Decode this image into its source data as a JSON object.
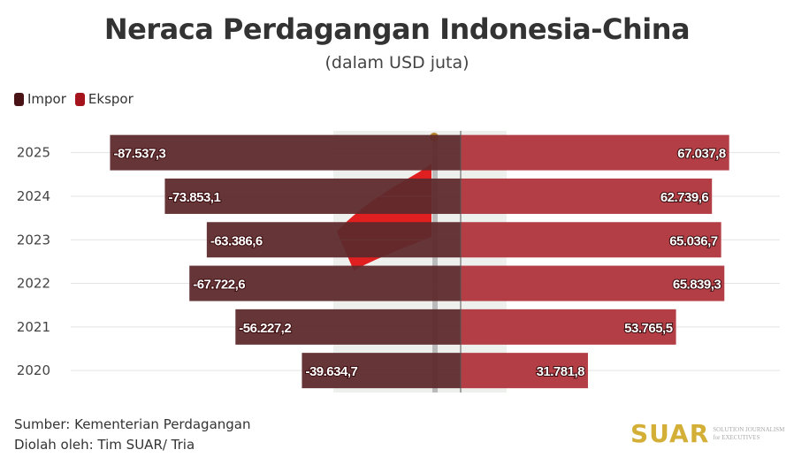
{
  "chart_data": {
    "type": "bar",
    "orientation": "horizontal-diverging",
    "title": "Neraca Perdagangan Indonesia-China",
    "subtitle": "(dalam USD juta)",
    "categories": [
      "2025",
      "2024",
      "2023",
      "2022",
      "2021",
      "2020"
    ],
    "series": [
      {
        "name": "Impor",
        "color": "#5e2a2c",
        "values": [
          -87537.3,
          -73853.1,
          -63386.6,
          -67722.6,
          -56227.2,
          -39634.7
        ],
        "labels": [
          "-87.537,3",
          "-73.853,1",
          "-63.386,6",
          "-67.722,6",
          "-56.227,2",
          "-39.634,7"
        ]
      },
      {
        "name": "Ekspor",
        "color": "#b0343b",
        "values": [
          67037.8,
          62739.6,
          65036.7,
          65839.3,
          53765.5,
          31781.8
        ],
        "labels": [
          "67.037,8",
          "62.739,6",
          "65.036,7",
          "65.839,3",
          "53.765,5",
          "31.781,8"
        ]
      }
    ],
    "legend_position": "top-left",
    "grid": true
  },
  "footer": {
    "source": "Sumber: Kementerian Perdagangan",
    "processed": "Diolah oleh: Tim SUAR/ Tria"
  },
  "logo": {
    "name": "SUAR",
    "tagline1": "SOLUTION JOURNALISM",
    "tagline2": "for EXECUTIVES"
  }
}
